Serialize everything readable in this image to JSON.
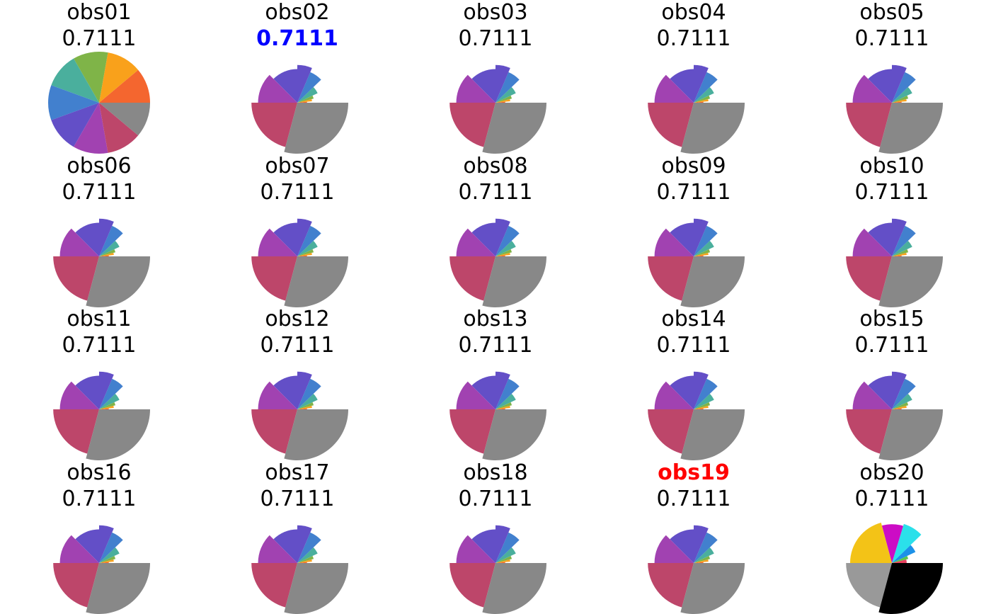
{
  "chart_data": {
    "type": "pie",
    "layout": {
      "rows": 4,
      "columns": 5
    },
    "palette_default": [
      "#f4662f",
      "#f9a11b",
      "#7fb448",
      "#4aaf9d",
      "#4280ce",
      "#634fc7",
      "#a142b1",
      "#bd466a",
      "#888888"
    ],
    "palette_alt": [
      "#e8405e",
      "#5ac64e",
      "#1c91e8",
      "#2be0ea",
      "#cc0cc5",
      "#f3c317",
      "#999999",
      "#000000"
    ],
    "panels": [
      {
        "name": "obs01",
        "score": "0.7111",
        "kind": "equal",
        "name_color": "#000000",
        "score_color": "#000000",
        "name_bold": false,
        "score_bold": false
      },
      {
        "name": "obs02",
        "score": "0.7111",
        "kind": "rose",
        "name_color": "#000000",
        "score_color": "#0000ff",
        "name_bold": false,
        "score_bold": true
      },
      {
        "name": "obs03",
        "score": "0.7111",
        "kind": "rose",
        "name_color": "#000000",
        "score_color": "#000000",
        "name_bold": false,
        "score_bold": false
      },
      {
        "name": "obs04",
        "score": "0.7111",
        "kind": "rose",
        "name_color": "#000000",
        "score_color": "#000000",
        "name_bold": false,
        "score_bold": false
      },
      {
        "name": "obs05",
        "score": "0.7111",
        "kind": "rose",
        "name_color": "#000000",
        "score_color": "#000000",
        "name_bold": false,
        "score_bold": false
      },
      {
        "name": "obs06",
        "score": "0.7111",
        "kind": "rose",
        "name_color": "#000000",
        "score_color": "#000000",
        "name_bold": false,
        "score_bold": false
      },
      {
        "name": "obs07",
        "score": "0.7111",
        "kind": "rose",
        "name_color": "#000000",
        "score_color": "#000000",
        "name_bold": false,
        "score_bold": false
      },
      {
        "name": "obs08",
        "score": "0.7111",
        "kind": "rose",
        "name_color": "#000000",
        "score_color": "#000000",
        "name_bold": false,
        "score_bold": false
      },
      {
        "name": "obs09",
        "score": "0.7111",
        "kind": "rose",
        "name_color": "#000000",
        "score_color": "#000000",
        "name_bold": false,
        "score_bold": false
      },
      {
        "name": "obs10",
        "score": "0.7111",
        "kind": "rose",
        "name_color": "#000000",
        "score_color": "#000000",
        "name_bold": false,
        "score_bold": false
      },
      {
        "name": "obs11",
        "score": "0.7111",
        "kind": "rose",
        "name_color": "#000000",
        "score_color": "#000000",
        "name_bold": false,
        "score_bold": false
      },
      {
        "name": "obs12",
        "score": "0.7111",
        "kind": "rose",
        "name_color": "#000000",
        "score_color": "#000000",
        "name_bold": false,
        "score_bold": false
      },
      {
        "name": "obs13",
        "score": "0.7111",
        "kind": "rose",
        "name_color": "#000000",
        "score_color": "#000000",
        "name_bold": false,
        "score_bold": false
      },
      {
        "name": "obs14",
        "score": "0.7111",
        "kind": "rose",
        "name_color": "#000000",
        "score_color": "#000000",
        "name_bold": false,
        "score_bold": false
      },
      {
        "name": "obs15",
        "score": "0.7111",
        "kind": "rose",
        "name_color": "#000000",
        "score_color": "#000000",
        "name_bold": false,
        "score_bold": false
      },
      {
        "name": "obs16",
        "score": "0.7111",
        "kind": "rose",
        "name_color": "#000000",
        "score_color": "#000000",
        "name_bold": false,
        "score_bold": false
      },
      {
        "name": "obs17",
        "score": "0.7111",
        "kind": "rose",
        "name_color": "#000000",
        "score_color": "#000000",
        "name_bold": false,
        "score_bold": false
      },
      {
        "name": "obs18",
        "score": "0.7111",
        "kind": "rose",
        "name_color": "#000000",
        "score_color": "#000000",
        "name_bold": false,
        "score_bold": false
      },
      {
        "name": "obs19",
        "score": "0.7111",
        "kind": "rose",
        "name_color": "#ff0000",
        "score_color": "#000000",
        "name_bold": true,
        "score_bold": false
      },
      {
        "name": "obs20",
        "score": "0.7111",
        "kind": "rose_alt",
        "name_color": "#000000",
        "score_color": "#000000",
        "name_bold": false,
        "score_bold": false
      }
    ]
  }
}
